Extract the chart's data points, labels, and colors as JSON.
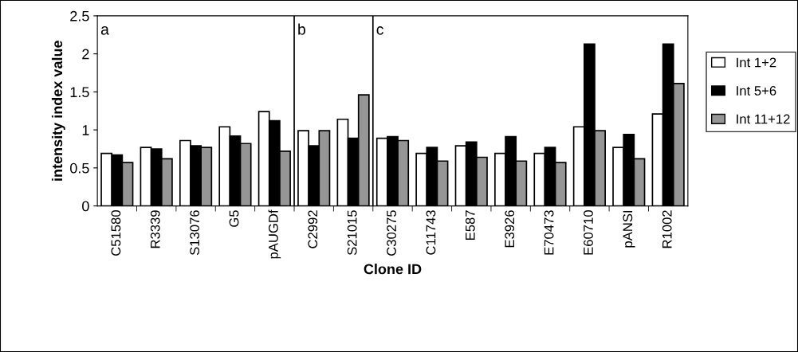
{
  "chart_data": {
    "type": "bar",
    "xlabel": "Clone ID",
    "ylabel": "intensity index value",
    "categories": [
      "C51580",
      "R3339",
      "S13076",
      "G5",
      "pAUGDf",
      "C2992",
      "S21015",
      "C30275",
      "C11743",
      "E587",
      "E3926",
      "E70473",
      "E60710",
      "pANSI",
      "R1002"
    ],
    "series": [
      {
        "name": "Int 1+2",
        "color": "#ffffff",
        "values": [
          0.69,
          0.77,
          0.86,
          1.04,
          1.24,
          0.99,
          1.14,
          0.89,
          0.69,
          0.79,
          0.69,
          0.69,
          1.04,
          0.77,
          1.21
        ]
      },
      {
        "name": "Int 5+6",
        "color": "#000000",
        "values": [
          0.67,
          0.75,
          0.79,
          0.92,
          1.12,
          0.79,
          0.89,
          0.91,
          0.77,
          0.84,
          0.91,
          0.77,
          2.13,
          0.94,
          2.13
        ]
      },
      {
        "name": "Int 11+12",
        "color": "#969696",
        "values": [
          0.57,
          0.62,
          0.77,
          0.82,
          0.72,
          0.99,
          1.46,
          0.86,
          0.59,
          0.64,
          0.59,
          0.57,
          0.99,
          0.62,
          1.61
        ]
      }
    ],
    "ylim": [
      0,
      2.5
    ],
    "yticks": [
      0,
      0.5,
      1,
      1.5,
      2,
      2.5
    ],
    "grid": false,
    "legend": "right",
    "annotations": [
      "a",
      "b",
      "c"
    ]
  }
}
